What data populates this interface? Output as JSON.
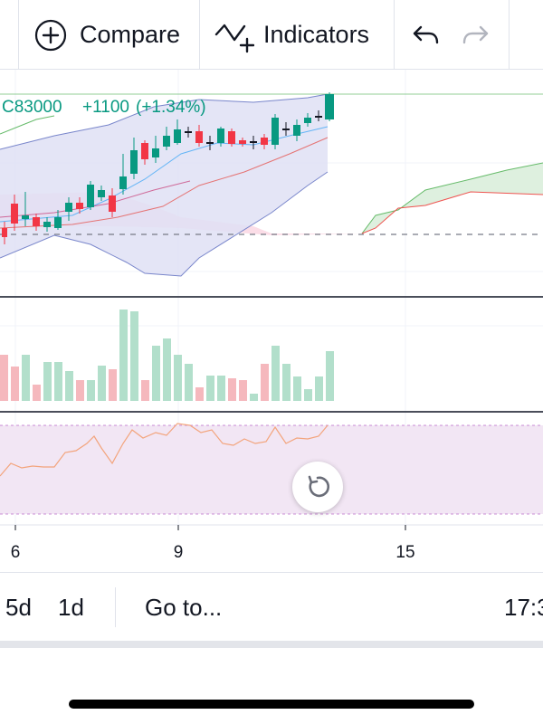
{
  "toolbar": {
    "compare_label": "Compare",
    "indicators_label": "Indicators"
  },
  "legend": {
    "close": "C83000",
    "change": "+1100",
    "change_pct": "(+1.34%)"
  },
  "x_axis_labels": [
    "6",
    "9",
    "15"
  ],
  "bottom_bar": {
    "range_5d": "5d",
    "range_1d": "1d",
    "goto_label": "Go to...",
    "time": "17:3"
  },
  "colors": {
    "up": "#089981",
    "down": "#f23645",
    "vol_up": "#b2dfcb",
    "vol_down": "#f5b8bd",
    "bb_fill": "#dfe1f5",
    "rsi_fill": "#f2e6f4",
    "accent": "#2962ff"
  },
  "icons": [
    "add-circle-icon",
    "indicators-icon",
    "undo-icon",
    "redo-icon",
    "reset-view-icon"
  ]
}
